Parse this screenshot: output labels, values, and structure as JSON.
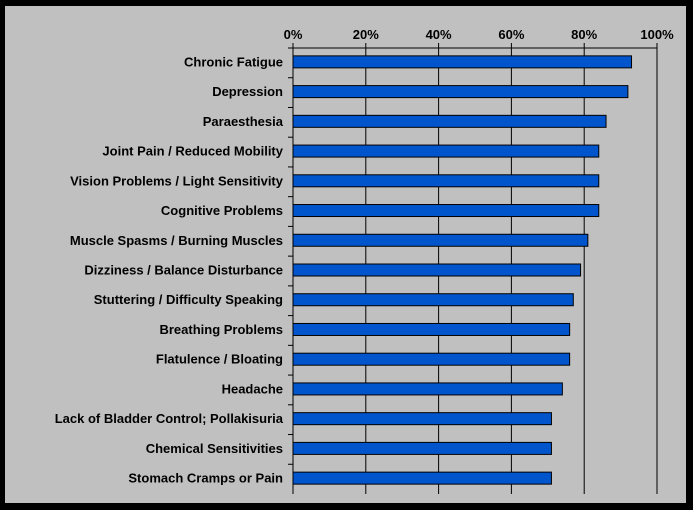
{
  "chart_data": {
    "type": "bar",
    "orientation": "horizontal",
    "categories": [
      "Chronic Fatigue",
      "Depression",
      "Paraesthesia",
      "Joint Pain / Reduced Mobility",
      "Vision Problems / Light Sensitivity",
      "Cognitive Problems",
      "Muscle Spasms / Burning Muscles",
      "Dizziness / Balance Disturbance",
      "Stuttering / Difficulty Speaking",
      "Breathing Problems",
      "Flatulence / Bloating",
      "Headache",
      "Lack of Bladder Control; Pollakisuria",
      "Chemical Sensitivities",
      "Stomach Cramps or Pain"
    ],
    "values": [
      93,
      92,
      86,
      84,
      84,
      84,
      81,
      79,
      77,
      76,
      76,
      74,
      71,
      71,
      71
    ],
    "xlim": [
      0,
      100
    ],
    "x_ticks": [
      "0%",
      "20%",
      "40%",
      "60%",
      "80%",
      "100%"
    ],
    "x_tick_values": [
      0,
      20,
      40,
      60,
      80,
      100
    ],
    "axis_position": "top",
    "grid": true,
    "bar_color": "#0055cc",
    "background_color": "#c0c0c0",
    "page_background": "#000000"
  }
}
